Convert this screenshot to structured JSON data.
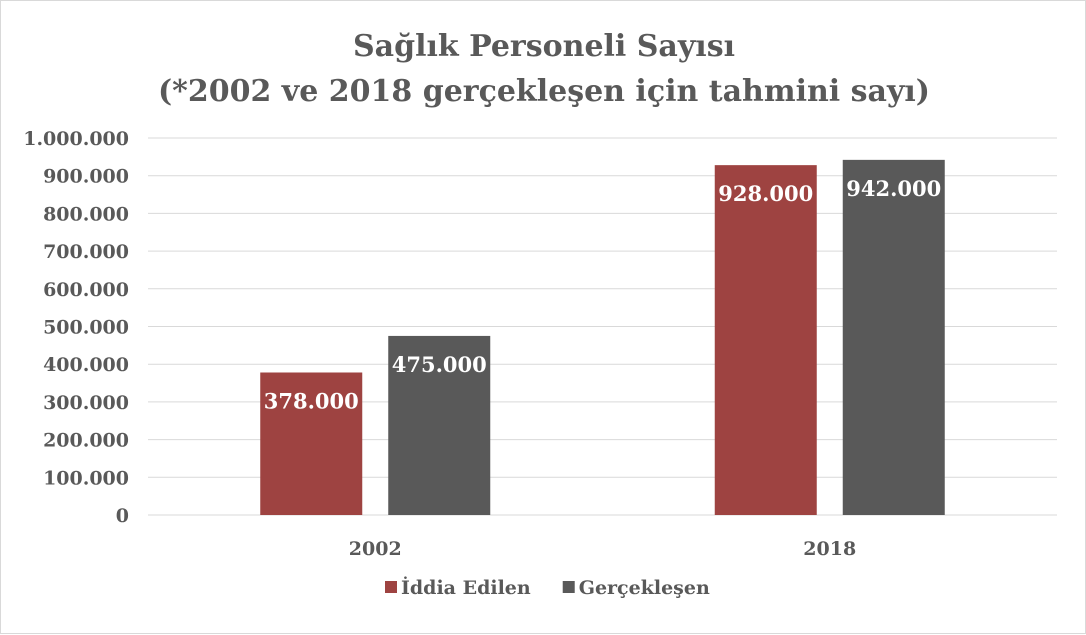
{
  "chart_data": {
    "type": "bar",
    "title": "Sağlık Personeli Sayısı",
    "subtitle": "(*2002 ve 2018 gerçekleşen için tahmini sayı)",
    "categories": [
      "2002",
      "2018"
    ],
    "series": [
      {
        "name": "İddia Edilen",
        "values": [
          378000,
          928000
        ],
        "labels": [
          "378.000",
          "928.000"
        ],
        "color": "#9e4341"
      },
      {
        "name": "Gerçekleşen",
        "values": [
          475000,
          942000
        ],
        "labels": [
          "475.000",
          "942.000"
        ],
        "color": "#595959"
      }
    ],
    "ylim": [
      0,
      1000000
    ],
    "yticks": [
      0,
      100000,
      200000,
      300000,
      400000,
      500000,
      600000,
      700000,
      800000,
      900000,
      1000000
    ],
    "ytick_labels": [
      "0",
      "100.000",
      "200.000",
      "300.000",
      "400.000",
      "500.000",
      "600.000",
      "700.000",
      "800.000",
      "900.000",
      "1.000.000"
    ],
    "grid": true,
    "legend_position": "bottom",
    "gridline_color": "#d9d9d9",
    "text_color": "#595959"
  }
}
